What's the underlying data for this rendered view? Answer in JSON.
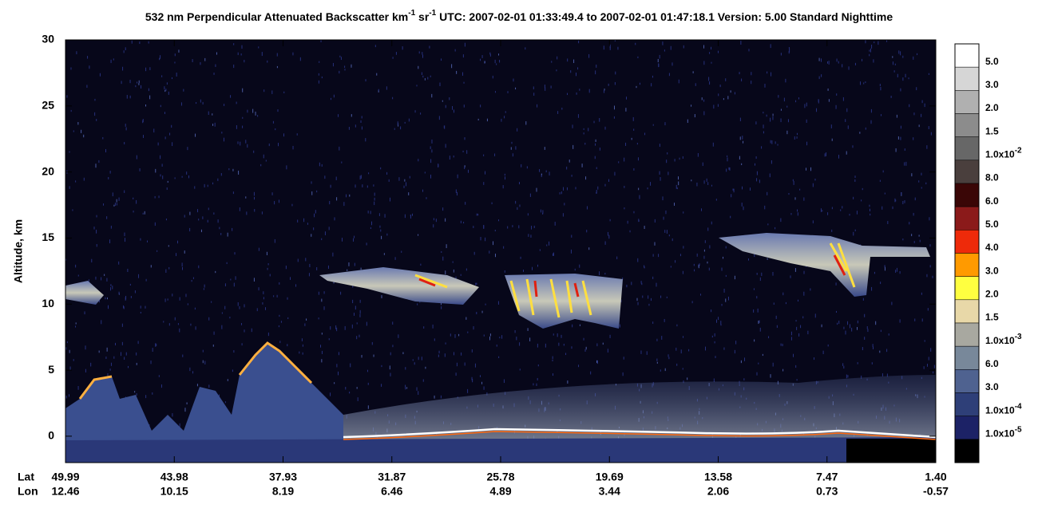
{
  "chart_data": {
    "type": "curtain",
    "title": [
      "532 nm Perpendicular Attenuated Backscatter km",
      "-1",
      " sr",
      "-1",
      "  UTC: 2007-02-01 01:33:49.4 to 2007-02-01 01:47:18.1  Version: 5.00 Standard Nighttime"
    ],
    "y_label": "Altitude, km",
    "ylim": [
      -2,
      30
    ],
    "yticks": [
      0,
      5,
      10,
      15,
      20,
      25,
      30
    ],
    "x_rows": [
      {
        "name": "Lat",
        "labels": [
          "49.99",
          "43.98",
          "37.93",
          "31.87",
          "25.78",
          "19.69",
          "13.58",
          "7.47",
          "1.40"
        ]
      },
      {
        "name": "Lon",
        "labels": [
          "12.46",
          "10.15",
          "8.19",
          "6.46",
          "4.89",
          "3.44",
          "2.06",
          "0.73",
          "-0.57"
        ]
      }
    ],
    "colorbar": [
      {
        "color": "#ffffff",
        "label": "5.0"
      },
      {
        "color": "#d6d6d6",
        "label": "3.0"
      },
      {
        "color": "#b0b0b0",
        "label": "2.0"
      },
      {
        "color": "#8c8c8c",
        "label": "1.5"
      },
      {
        "color": "#676767",
        "label": "1.0x10",
        "exponent": "-2"
      },
      {
        "color": "#4a3f3d",
        "label": "8.0"
      },
      {
        "color": "#3a0606",
        "label": "6.0"
      },
      {
        "color": "#8b1a1a",
        "label": "5.0"
      },
      {
        "color": "#ee2a0a",
        "label": "4.0"
      },
      {
        "color": "#ff9a00",
        "label": "3.0"
      },
      {
        "color": "#ffff40",
        "label": "2.0"
      },
      {
        "color": "#e8d8a8",
        "label": "1.5"
      },
      {
        "color": "#a8a8a0",
        "label": "1.0x10",
        "exponent": "-3"
      },
      {
        "color": "#78889a",
        "label": "6.0"
      },
      {
        "color": "#4f6290",
        "label": "3.0"
      },
      {
        "color": "#2e3f78",
        "label": "1.0x10",
        "exponent": "-4"
      },
      {
        "color": "#1c2266",
        "label": "1.0x10",
        "exponent": "-5"
      },
      {
        "color": "#000000"
      }
    ]
  }
}
